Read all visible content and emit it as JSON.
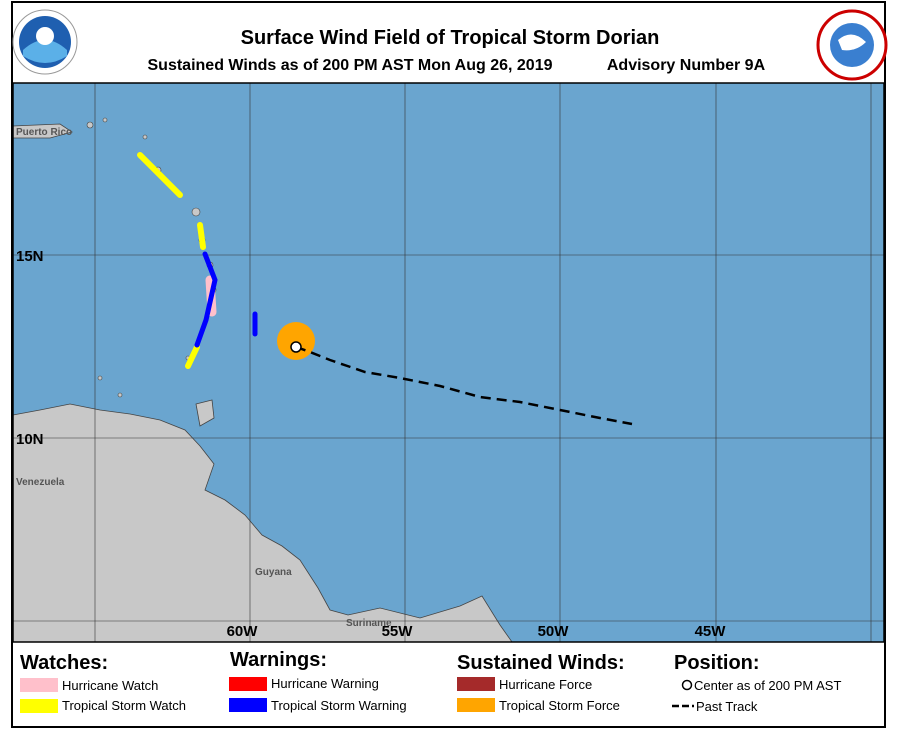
{
  "header": {
    "title": "Surface Wind Field of Tropical Storm Dorian",
    "subtitle": "Sustained Winds as of 200 PM AST Mon Aug 26, 2019",
    "advisory": "Advisory Number 9A"
  },
  "map": {
    "places": [
      "Puerto Rico",
      "Venezuela",
      "Guyana",
      "Suriname"
    ],
    "lat_labels": [
      "15N",
      "10N"
    ],
    "lon_labels": [
      "60W",
      "55W",
      "50W",
      "45W"
    ]
  },
  "legend": {
    "watches": {
      "heading": "Watches:",
      "items": [
        "Hurricane Watch",
        "Tropical Storm Watch"
      ]
    },
    "warnings": {
      "heading": "Warnings:",
      "items": [
        "Hurricane Warning",
        "Tropical Storm Warning"
      ]
    },
    "winds": {
      "heading": "Sustained Winds:",
      "items": [
        "Hurricane Force",
        "Tropical Storm Force"
      ]
    },
    "position": {
      "heading": "Position:",
      "items": [
        "Center as of 200 PM AST",
        "Past Track"
      ]
    }
  }
}
